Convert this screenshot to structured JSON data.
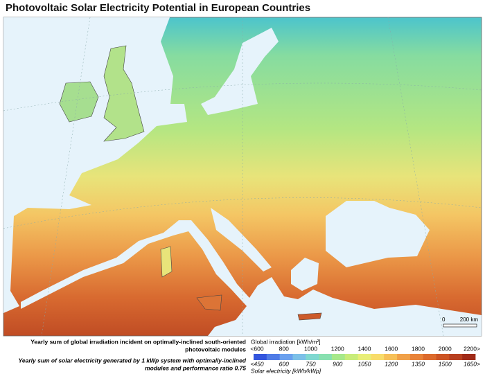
{
  "title": "Photovoltaic Solar Electricity Potential in European Countries",
  "captions": {
    "irradiation": [
      "Yearly sum of global irradiation incident on optimally-inclined south-oriented",
      "photovoltaic modules"
    ],
    "electricity": [
      "Yearly sum of solar electricity generated by 1 kWp system with optimally-inclined",
      "modules and performance ratio 0.75"
    ]
  },
  "legend": {
    "irradiation_title": "Global irradiation [kWh/m²]",
    "irradiation_labels": [
      "<600",
      "800",
      "1000",
      "1200",
      "1400",
      "1600",
      "1800",
      "2000",
      "2200>"
    ],
    "electricity_labels": [
      "<450",
      "600",
      "750",
      "900",
      "1050",
      "1200",
      "1350",
      "1500",
      "1650>"
    ],
    "electricity_title": "Solar electricity [kWh/kWp]",
    "colors": [
      "#3355dd",
      "#4f7be6",
      "#6aa0ee",
      "#7cc0e8",
      "#7fd8d0",
      "#88e0b0",
      "#a6e88a",
      "#c8ec7a",
      "#e8ee78",
      "#f8dc6a",
      "#f6c058",
      "#f0a048",
      "#e88238",
      "#dc6a2c",
      "#cc5424",
      "#b84020",
      "#a02a18"
    ]
  },
  "scale_bar": {
    "start": "0",
    "end": "200 km"
  }
}
